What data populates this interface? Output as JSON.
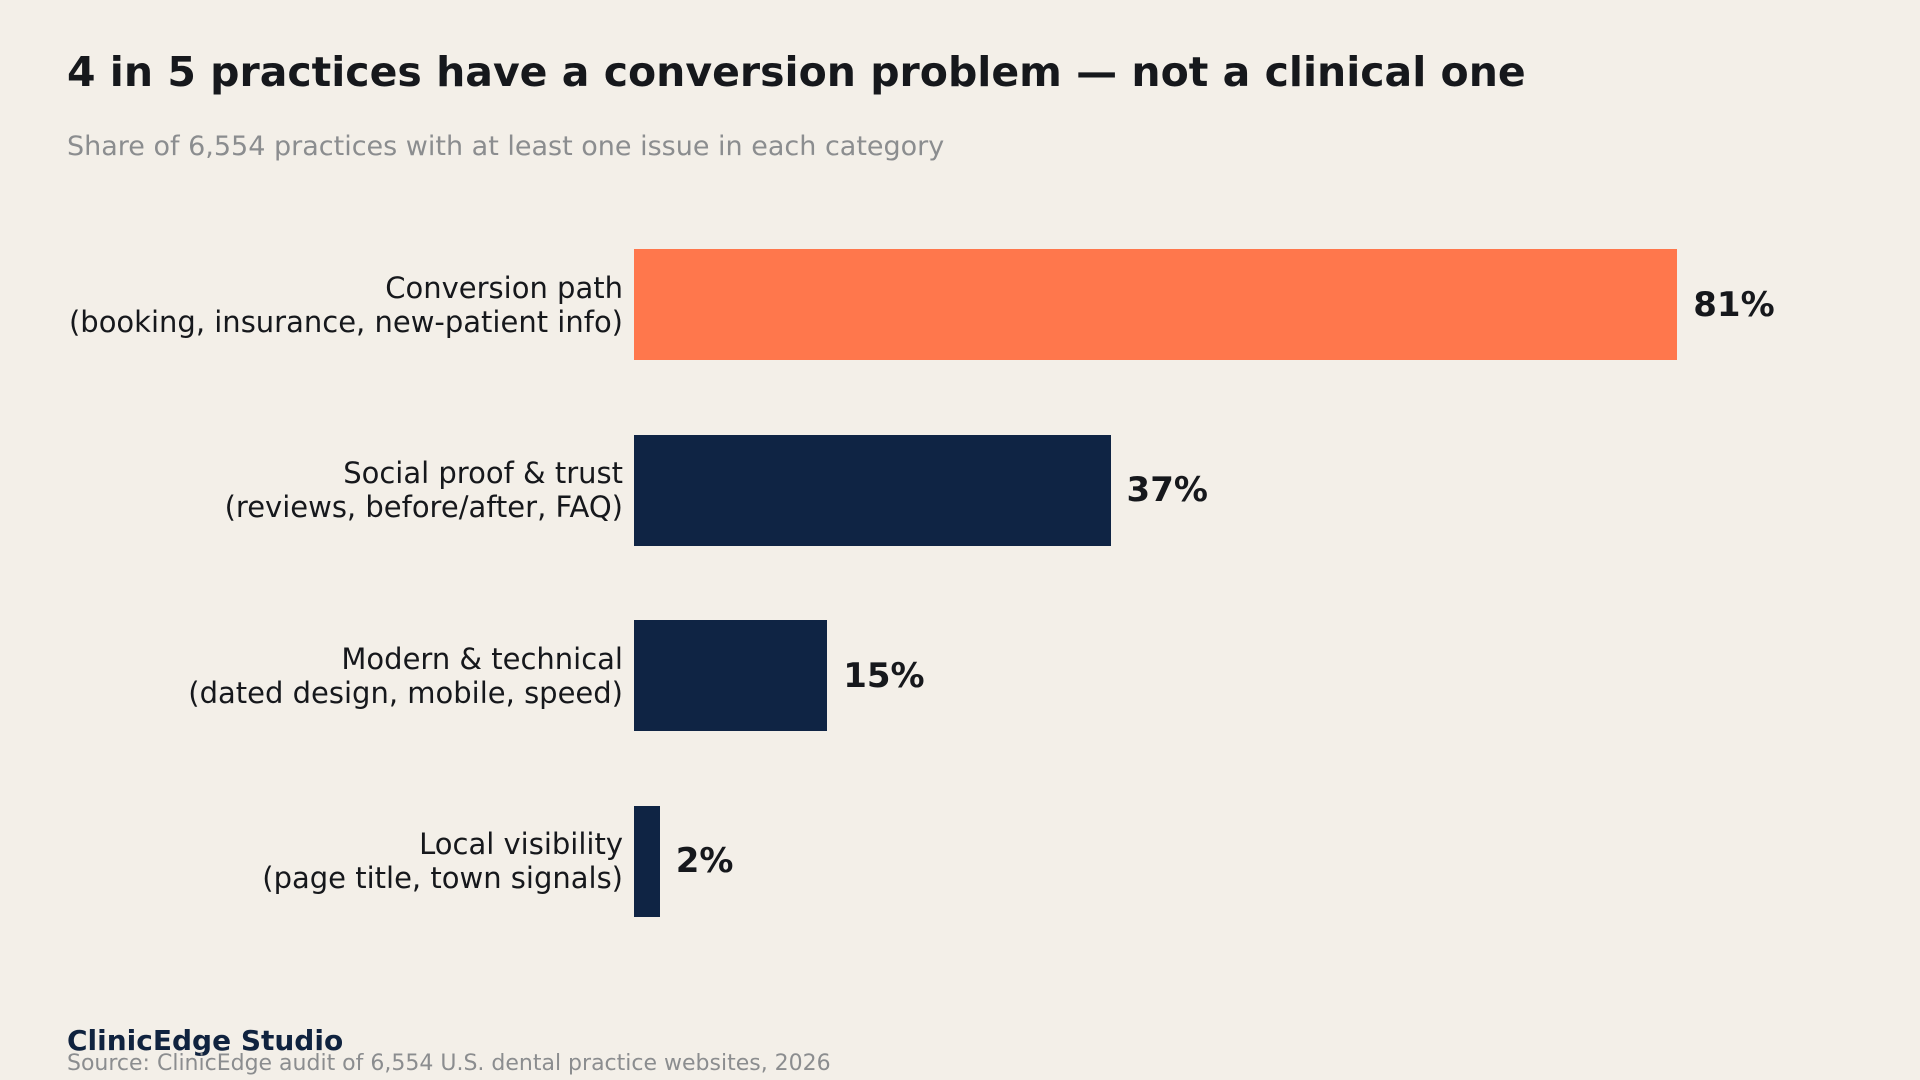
{
  "chart_data": {
    "type": "bar",
    "orientation": "horizontal",
    "title": "4 in 5 practices have a conversion problem — not a clinical one",
    "subtitle": "Share of 6,554 practices with at least one issue in each category",
    "categories": [
      "Conversion path\n(booking, insurance, new-patient info)",
      "Social proof & trust\n(reviews, before/after, FAQ)",
      "Modern & technical\n(dated design, mobile, speed)",
      "Local visibility\n(page title, town signals)"
    ],
    "values": [
      81,
      37,
      15,
      2
    ],
    "value_labels": [
      "81%",
      "37%",
      "15%",
      "2%"
    ],
    "colors": [
      "#ff774c",
      "#0f2444",
      "#0f2444",
      "#0f2444"
    ],
    "xlim": [
      0,
      100
    ],
    "brand": "ClinicEdge Studio",
    "source": "Source: ClinicEdge audit of 6,554 U.S. dental practice websites, 2026"
  }
}
